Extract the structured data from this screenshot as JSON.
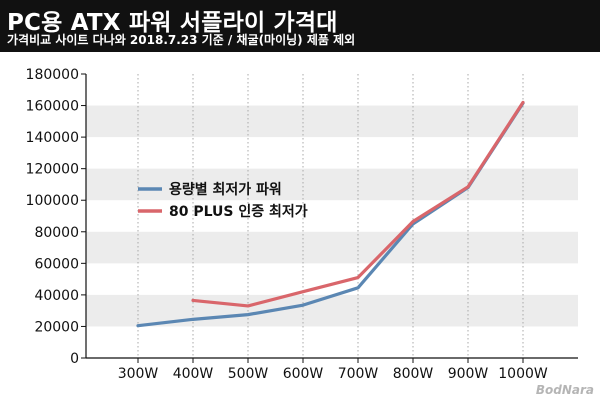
{
  "header": {
    "title": "PC용 ATX 파워 서플라이 가격대",
    "subtitle": "가격비교 사이트 다나와 2018.7.23 기준 / 채굴(마이닝) 제품 제외"
  },
  "watermark": "BodNara",
  "colors": {
    "header_bg": "#111111",
    "band": "#ececec",
    "series_blue": "#5b87b3",
    "series_red": "#d9666b"
  },
  "chart_data": {
    "type": "line",
    "categories": [
      "300W",
      "400W",
      "500W",
      "600W",
      "700W",
      "800W",
      "900W",
      "1000W"
    ],
    "ylim": [
      0,
      180000
    ],
    "yticks": [
      "0",
      "20000",
      "40000",
      "60000",
      "80000",
      "100000",
      "120000",
      "140000",
      "160000",
      "180000"
    ],
    "grid": "horizontal bands, dotted vertical lines",
    "legend_placement": "center-left",
    "series": [
      {
        "name": "용량별 최저가 파워",
        "color": "#5b87b3",
        "values": [
          20500,
          24500,
          27500,
          33500,
          44500,
          85000,
          108000,
          161500
        ]
      },
      {
        "name": "80 PLUS 인증 최저가",
        "color": "#d9666b",
        "values": [
          null,
          36500,
          33000,
          42000,
          51000,
          86500,
          108500,
          162000
        ]
      }
    ]
  }
}
